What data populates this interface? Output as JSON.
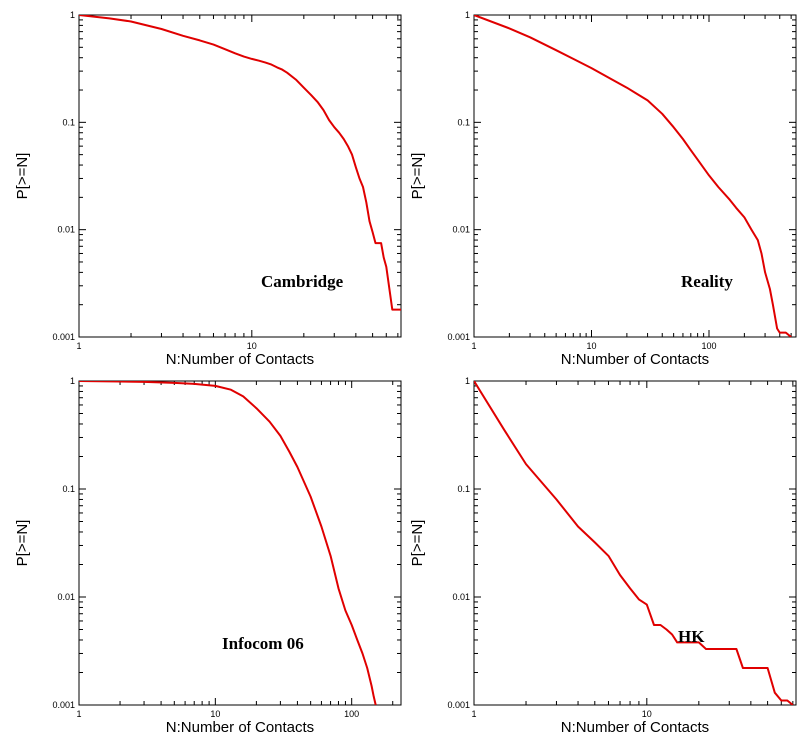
{
  "chart_data": [
    {
      "type": "line",
      "title": "",
      "xlabel": "N:Number of Contacts",
      "ylabel": "P[>=N]",
      "xscale": "log",
      "yscale": "log",
      "xlim": [
        1,
        73
      ],
      "ylim": [
        0.001,
        1
      ],
      "x_ticks": [
        1,
        10
      ],
      "x_tick_labels": [
        "1",
        "10"
      ],
      "y_ticks": [
        0.001,
        0.01,
        0.1,
        1
      ],
      "y_tick_labels": [
        "0.001",
        "0.01",
        "0.1",
        "1"
      ],
      "grid": false,
      "annotation": "Cambridge",
      "annotation_position": "bottom-right",
      "color": "#e00000",
      "series": [
        {
          "x": [
            1,
            1.5,
            2,
            3,
            4,
            5,
            6,
            7,
            8,
            9,
            10,
            11,
            12,
            13,
            14,
            15,
            16,
            18,
            20,
            22,
            24,
            26,
            28,
            30,
            32,
            34,
            36,
            38,
            40,
            42,
            44,
            46,
            48,
            50,
            52,
            54,
            56,
            58,
            60,
            65,
            70,
            73
          ],
          "y": [
            1,
            0.93,
            0.87,
            0.74,
            0.64,
            0.58,
            0.53,
            0.48,
            0.44,
            0.41,
            0.39,
            0.375,
            0.36,
            0.345,
            0.325,
            0.31,
            0.29,
            0.25,
            0.21,
            0.18,
            0.155,
            0.13,
            0.105,
            0.09,
            0.08,
            0.07,
            0.06,
            0.05,
            0.038,
            0.03,
            0.025,
            0.018,
            0.012,
            0.0095,
            0.0075,
            0.0075,
            0.0075,
            0.0055,
            0.0045,
            0.0018,
            0.0018,
            0.0018
          ]
        }
      ]
    },
    {
      "type": "line",
      "title": "",
      "xlabel": "N:Number of Contacts",
      "ylabel": "P[>=N]",
      "xscale": "log",
      "yscale": "log",
      "xlim": [
        1,
        550
      ],
      "ylim": [
        0.001,
        1
      ],
      "x_ticks": [
        1,
        10,
        100
      ],
      "x_tick_labels": [
        "1",
        "10",
        "100"
      ],
      "y_ticks": [
        0.001,
        0.01,
        0.1,
        1
      ],
      "y_tick_labels": [
        "0.001",
        "0.01",
        "0.1",
        "1"
      ],
      "grid": false,
      "annotation": "Reality",
      "annotation_position": "bottom-right",
      "color": "#e00000",
      "series": [
        {
          "x": [
            1,
            2,
            3,
            5,
            7,
            10,
            15,
            20,
            30,
            40,
            50,
            60,
            70,
            80,
            100,
            120,
            150,
            170,
            200,
            230,
            260,
            280,
            300,
            330,
            350,
            380,
            400,
            450,
            500
          ],
          "y": [
            1,
            0.75,
            0.62,
            0.47,
            0.39,
            0.32,
            0.25,
            0.21,
            0.16,
            0.12,
            0.09,
            0.07,
            0.055,
            0.045,
            0.032,
            0.025,
            0.019,
            0.016,
            0.013,
            0.01,
            0.008,
            0.006,
            0.004,
            0.0028,
            0.002,
            0.0012,
            0.0011,
            0.0011,
            0.001
          ]
        }
      ]
    },
    {
      "type": "line",
      "title": "",
      "xlabel": "N:Number of Contacts",
      "ylabel": "P[>=N]",
      "xscale": "log",
      "yscale": "log",
      "xlim": [
        1,
        230
      ],
      "ylim": [
        0.001,
        1
      ],
      "x_ticks": [
        1,
        10,
        100
      ],
      "x_tick_labels": [
        "1",
        "10",
        "100"
      ],
      "y_ticks": [
        0.001,
        0.01,
        0.1,
        1
      ],
      "y_tick_labels": [
        "0.001",
        "0.01",
        "0.1",
        "1"
      ],
      "grid": false,
      "annotation": "Infocom 06",
      "annotation_position": "bottom-right",
      "color": "#e00000",
      "series": [
        {
          "x": [
            1,
            2,
            3,
            5,
            7,
            10,
            13,
            16,
            20,
            25,
            30,
            35,
            40,
            50,
            60,
            70,
            80,
            90,
            100,
            110,
            120,
            130,
            140,
            145,
            150
          ],
          "y": [
            1,
            0.99,
            0.98,
            0.96,
            0.94,
            0.9,
            0.83,
            0.72,
            0.56,
            0.42,
            0.31,
            0.22,
            0.16,
            0.085,
            0.045,
            0.024,
            0.012,
            0.0075,
            0.0055,
            0.004,
            0.003,
            0.0022,
            0.0015,
            0.0012,
            0.001
          ]
        }
      ]
    },
    {
      "type": "line",
      "title": "",
      "xlabel": "N:Number of Contacts",
      "ylabel": "P[>=N]",
      "xscale": "log",
      "yscale": "log",
      "xlim": [
        1,
        73
      ],
      "ylim": [
        0.001,
        1
      ],
      "x_ticks": [
        1,
        10
      ],
      "x_tick_labels": [
        "1",
        "10"
      ],
      "y_ticks": [
        0.001,
        0.01,
        0.1,
        1
      ],
      "y_tick_labels": [
        "0.001",
        "0.01",
        "0.1",
        "1"
      ],
      "grid": false,
      "annotation": "HK",
      "annotation_position": "center-right",
      "color": "#e00000",
      "series": [
        {
          "x": [
            1,
            1.5,
            2,
            3,
            4,
            5,
            6,
            7,
            8,
            9,
            10,
            11,
            12,
            13,
            14,
            15,
            16,
            18,
            20,
            22,
            25,
            30,
            33,
            36,
            40,
            45,
            50,
            55,
            60,
            65,
            70
          ],
          "y": [
            1,
            0.35,
            0.17,
            0.08,
            0.045,
            0.032,
            0.024,
            0.016,
            0.012,
            0.0095,
            0.0085,
            0.0055,
            0.0055,
            0.005,
            0.0045,
            0.0038,
            0.0038,
            0.0038,
            0.0038,
            0.0033,
            0.0033,
            0.0033,
            0.0033,
            0.0022,
            0.0022,
            0.0022,
            0.0022,
            0.0013,
            0.0011,
            0.0011,
            0.001
          ]
        }
      ]
    }
  ]
}
